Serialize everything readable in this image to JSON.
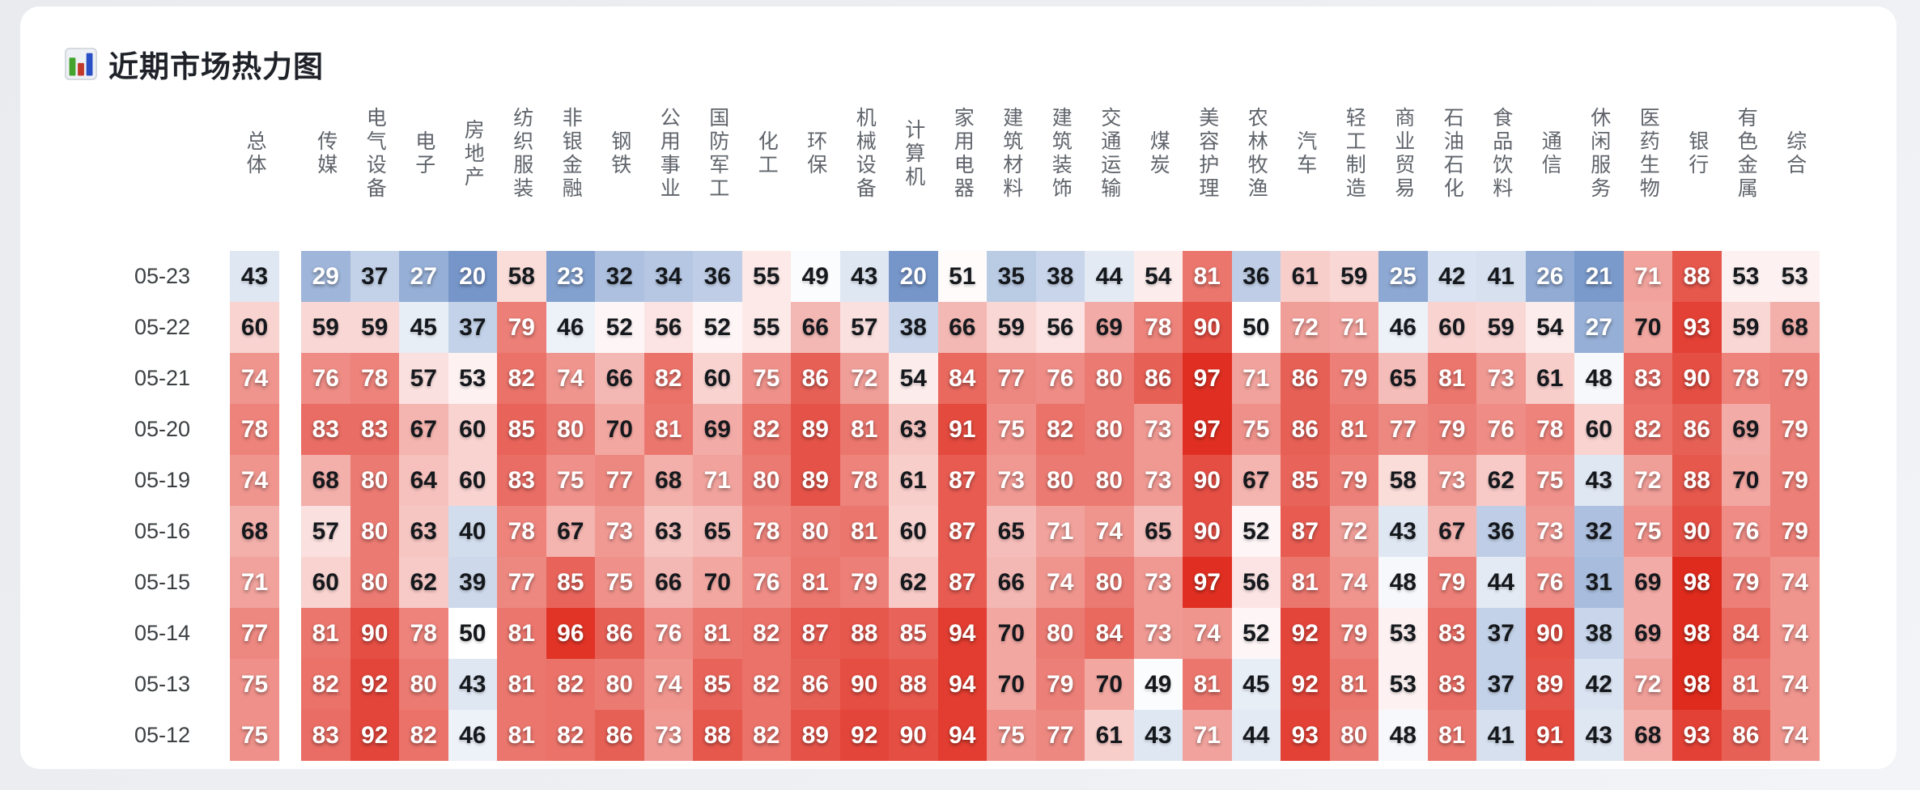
{
  "card": {
    "title": "近期市场热力图"
  },
  "chart_data": {
    "type": "heatmap",
    "title": "近期市场热力图",
    "x_categories": [
      "总体",
      "传媒",
      "电气设备",
      "电子",
      "房地产",
      "纺织服装",
      "非银金融",
      "钢铁",
      "公用事业",
      "国防军工",
      "化工",
      "环保",
      "机械设备",
      "计算机",
      "家用电器",
      "建筑材料",
      "建筑装饰",
      "交通运输",
      "煤炭",
      "美容护理",
      "农林牧渔",
      "汽车",
      "轻工制造",
      "商业贸易",
      "石油石化",
      "食品饮料",
      "通信",
      "休闲服务",
      "医药生物",
      "银行",
      "有色金属",
      "综合"
    ],
    "y_categories": [
      "05-23",
      "05-22",
      "05-21",
      "05-20",
      "05-19",
      "05-16",
      "05-15",
      "05-14",
      "05-13",
      "05-12"
    ],
    "values": [
      [
        43,
        29,
        37,
        27,
        20,
        58,
        23,
        32,
        34,
        36,
        55,
        49,
        43,
        20,
        51,
        35,
        38,
        44,
        54,
        81,
        36,
        61,
        59,
        25,
        42,
        41,
        26,
        21,
        71,
        88,
        53,
        53
      ],
      [
        60,
        59,
        59,
        45,
        37,
        79,
        46,
        52,
        56,
        52,
        55,
        66,
        57,
        38,
        66,
        59,
        56,
        69,
        78,
        90,
        50,
        72,
        71,
        46,
        60,
        59,
        54,
        27,
        70,
        93,
        59,
        68
      ],
      [
        74,
        76,
        78,
        57,
        53,
        82,
        74,
        66,
        82,
        60,
        75,
        86,
        72,
        54,
        84,
        77,
        76,
        80,
        86,
        97,
        71,
        86,
        79,
        65,
        81,
        73,
        61,
        48,
        83,
        90,
        78,
        79
      ],
      [
        78,
        83,
        83,
        67,
        60,
        85,
        80,
        70,
        81,
        69,
        82,
        89,
        81,
        63,
        91,
        75,
        82,
        80,
        73,
        97,
        75,
        86,
        81,
        77,
        79,
        76,
        78,
        60,
        82,
        86,
        69,
        79
      ],
      [
        74,
        68,
        80,
        64,
        60,
        83,
        75,
        77,
        68,
        71,
        80,
        89,
        78,
        61,
        87,
        73,
        80,
        80,
        73,
        90,
        67,
        85,
        79,
        58,
        73,
        62,
        75,
        43,
        72,
        88,
        70,
        79
      ],
      [
        68,
        57,
        80,
        63,
        40,
        78,
        67,
        73,
        63,
        65,
        78,
        80,
        81,
        60,
        87,
        65,
        71,
        74,
        65,
        90,
        52,
        87,
        72,
        43,
        67,
        36,
        73,
        32,
        75,
        90,
        76,
        79
      ],
      [
        71,
        60,
        80,
        62,
        39,
        77,
        85,
        75,
        66,
        70,
        76,
        81,
        79,
        62,
        87,
        66,
        74,
        80,
        73,
        97,
        56,
        81,
        74,
        48,
        79,
        44,
        76,
        31,
        69,
        98,
        79,
        74
      ],
      [
        77,
        81,
        90,
        78,
        50,
        81,
        96,
        86,
        76,
        81,
        82,
        87,
        88,
        85,
        94,
        70,
        80,
        84,
        73,
        74,
        52,
        92,
        79,
        53,
        83,
        37,
        90,
        38,
        69,
        98,
        84,
        74
      ],
      [
        75,
        82,
        92,
        80,
        43,
        81,
        82,
        80,
        74,
        85,
        82,
        86,
        90,
        88,
        94,
        70,
        79,
        70,
        49,
        81,
        45,
        92,
        81,
        53,
        83,
        37,
        89,
        42,
        72,
        98,
        81,
        74
      ],
      [
        75,
        83,
        92,
        82,
        46,
        81,
        82,
        86,
        73,
        88,
        82,
        89,
        92,
        90,
        94,
        75,
        77,
        61,
        43,
        71,
        44,
        93,
        80,
        48,
        81,
        41,
        91,
        43,
        68,
        93,
        86,
        74
      ]
    ],
    "value_range": [
      0,
      100
    ],
    "color_scale": {
      "low": "#1a50a6",
      "mid": "#ffffff",
      "high": "#de2214",
      "mid_value": 50
    },
    "text_color_rule": {
      "white_if_above": 70,
      "white_if_below": 30,
      "default_color": "#15181c",
      "highlight_color": "#ffffff"
    },
    "icon": "bar-chart-icon"
  }
}
